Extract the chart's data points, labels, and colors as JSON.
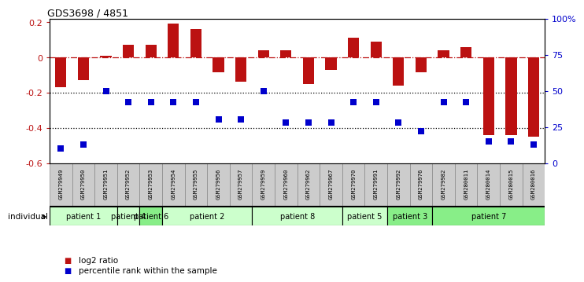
{
  "title": "GDS3698 / 4851",
  "samples": [
    "GSM279949",
    "GSM279950",
    "GSM279951",
    "GSM279952",
    "GSM279953",
    "GSM279954",
    "GSM279955",
    "GSM279956",
    "GSM279957",
    "GSM279959",
    "GSM279960",
    "GSM279962",
    "GSM279967",
    "GSM279970",
    "GSM279991",
    "GSM279992",
    "GSM279976",
    "GSM279982",
    "GSM280011",
    "GSM280014",
    "GSM280015",
    "GSM280016"
  ],
  "log2_ratio": [
    -0.17,
    -0.13,
    0.01,
    0.07,
    0.07,
    0.19,
    0.16,
    -0.085,
    -0.14,
    0.04,
    0.04,
    -0.15,
    -0.07,
    0.11,
    0.09,
    -0.16,
    -0.085,
    0.04,
    0.06,
    -0.44,
    -0.44,
    -0.45
  ],
  "percentile_rank_pct": [
    10,
    13,
    50,
    42,
    42,
    42,
    42,
    30,
    30,
    50,
    28,
    28,
    28,
    42,
    42,
    28,
    22,
    42,
    42,
    15,
    15,
    13
  ],
  "patients": [
    {
      "label": "patient 1",
      "start": 0,
      "end": 3,
      "color": "#ccffcc"
    },
    {
      "label": "patient 4",
      "start": 3,
      "end": 4,
      "color": "#ccffcc"
    },
    {
      "label": "patient 6",
      "start": 4,
      "end": 5,
      "color": "#88ee88"
    },
    {
      "label": "patient 2",
      "start": 5,
      "end": 9,
      "color": "#ccffcc"
    },
    {
      "label": "patient 8",
      "start": 9,
      "end": 13,
      "color": "#ccffcc"
    },
    {
      "label": "patient 5",
      "start": 13,
      "end": 15,
      "color": "#ccffcc"
    },
    {
      "label": "patient 3",
      "start": 15,
      "end": 17,
      "color": "#88ee88"
    },
    {
      "label": "patient 7",
      "start": 17,
      "end": 22,
      "color": "#88ee88"
    }
  ],
  "bar_color": "#bb1111",
  "dot_color": "#0000cc",
  "ylim_left": [
    -0.6,
    0.22
  ],
  "ylim_right": [
    0,
    100
  ],
  "yticks_left": [
    -0.6,
    -0.4,
    -0.2,
    0.0,
    0.2
  ],
  "yticks_right": [
    0,
    25,
    50,
    75,
    100
  ],
  "ytick_labels_right": [
    "0",
    "25",
    "50",
    "75",
    "100%"
  ],
  "hline_y": 0.0,
  "dotted_lines": [
    -0.2,
    -0.4
  ],
  "bar_width": 0.5,
  "dot_size": 28,
  "sample_label_color": "#cccccc",
  "sample_label_edge": "#888888"
}
